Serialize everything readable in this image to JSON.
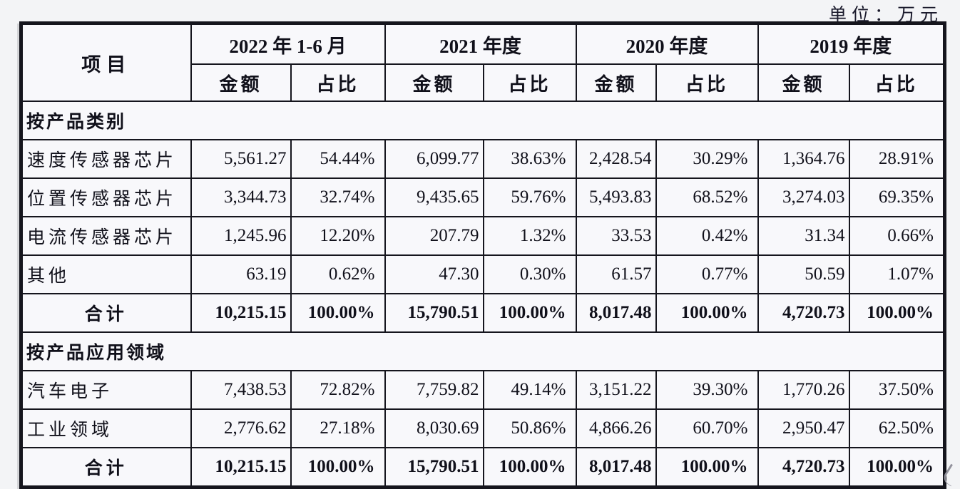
{
  "unit_label": "单位：万元",
  "colors": {
    "border": "#15151d",
    "text": "#10101a",
    "cell_bg": "#f8f8fb",
    "page_bg": "#f3f4f6"
  },
  "table": {
    "corner_header": "项目",
    "period_headers": [
      "2022 年 1-6 月",
      "2021 年度",
      "2020 年度",
      "2019 年度"
    ],
    "sub_headers": {
      "amount": "金额",
      "ratio": "占比"
    },
    "rows": [
      {
        "type": "section",
        "label": "按产品类别"
      },
      {
        "type": "data",
        "label": "速度传感器芯片",
        "values": [
          "5,561.27",
          "54.44%",
          "6,099.77",
          "38.63%",
          "2,428.54",
          "30.29%",
          "1,364.76",
          "28.91%"
        ]
      },
      {
        "type": "data",
        "label": "位置传感器芯片",
        "values": [
          "3,344.73",
          "32.74%",
          "9,435.65",
          "59.76%",
          "5,493.83",
          "68.52%",
          "3,274.03",
          "69.35%"
        ]
      },
      {
        "type": "data",
        "label": "电流传感器芯片",
        "values": [
          "1,245.96",
          "12.20%",
          "207.79",
          "1.32%",
          "33.53",
          "0.42%",
          "31.34",
          "0.66%"
        ]
      },
      {
        "type": "data",
        "label": "其他",
        "values": [
          "63.19",
          "0.62%",
          "47.30",
          "0.30%",
          "61.57",
          "0.77%",
          "50.59",
          "1.07%"
        ]
      },
      {
        "type": "total",
        "label": "合计",
        "values": [
          "10,215.15",
          "100.00%",
          "15,790.51",
          "100.00%",
          "8,017.48",
          "100.00%",
          "4,720.73",
          "100.00%"
        ]
      },
      {
        "type": "section",
        "label": "按产品应用领域"
      },
      {
        "type": "data",
        "label": "汽车电子",
        "values": [
          "7,438.53",
          "72.82%",
          "7,759.82",
          "49.14%",
          "3,151.22",
          "39.30%",
          "1,770.26",
          "37.50%"
        ]
      },
      {
        "type": "data",
        "label": "工业领域",
        "values": [
          "2,776.62",
          "27.18%",
          "8,030.69",
          "50.86%",
          "4,866.26",
          "60.70%",
          "2,950.47",
          "62.50%"
        ]
      },
      {
        "type": "total",
        "label": "合计",
        "values": [
          "10,215.15",
          "100.00%",
          "15,790.51",
          "100.00%",
          "8,017.48",
          "100.00%",
          "4,720.73",
          "100.00%"
        ]
      }
    ]
  }
}
